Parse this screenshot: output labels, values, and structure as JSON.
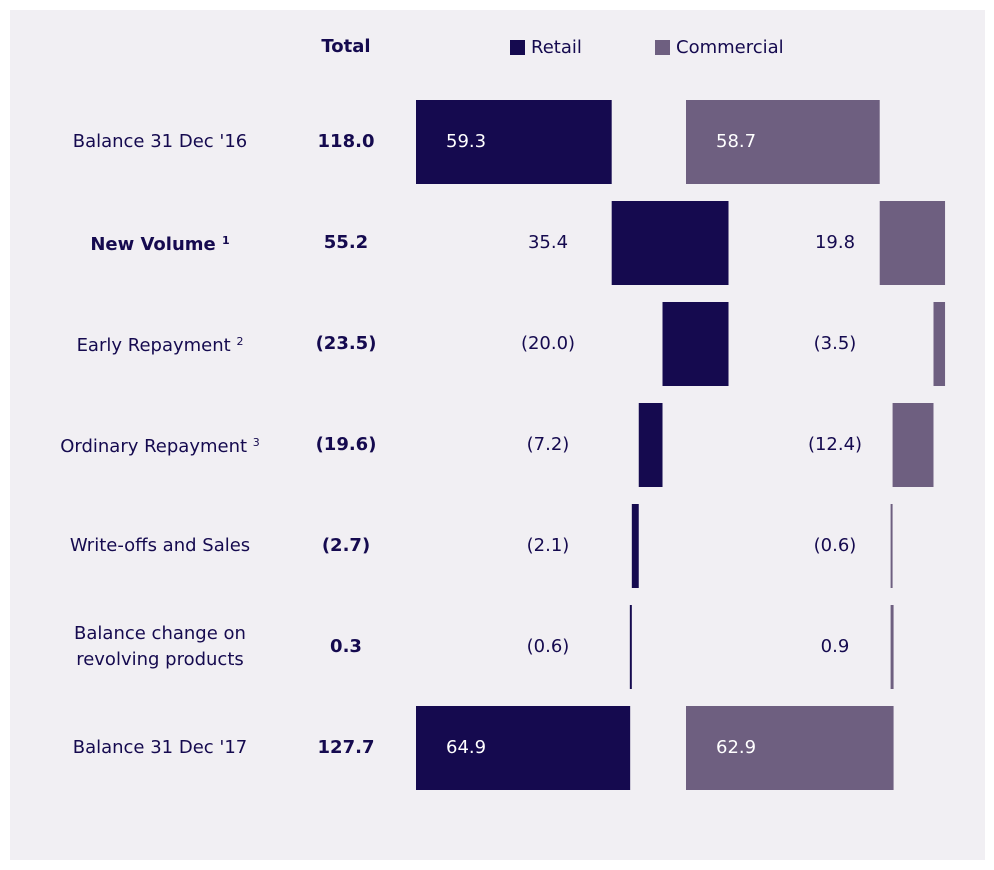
{
  "chart_data": {
    "type": "waterfall",
    "header": "Total",
    "categories": [
      "Balance 31 Dec '16",
      "New Volume",
      "Early  Repayment",
      "Ordinary Repayment",
      "Write-offs and Sales",
      "Balance change on revolving products",
      "Balance 31 Dec '17"
    ],
    "category_notes": [
      null,
      "1",
      "2",
      "3",
      null,
      null,
      null
    ],
    "totals": [
      118.0,
      55.2,
      -23.5,
      -19.6,
      -2.7,
      0.3,
      127.7
    ],
    "total_value_labels": [
      "118.0",
      "55.2",
      "(23.5)",
      "(19.6)",
      "(2.7)",
      "0.3",
      "127.7"
    ],
    "series": [
      {
        "name": "Retail",
        "color": "#150a4f",
        "values": [
          59.3,
          35.4,
          -20.0,
          -7.2,
          -2.1,
          -0.6,
          64.9
        ],
        "value_labels": [
          "59.3",
          "35.4",
          "(20.0)",
          "(7.2)",
          "(2.1)",
          "(0.6)",
          "64.9"
        ]
      },
      {
        "name": "Commercial",
        "color": "#6e5f80",
        "values": [
          58.7,
          19.8,
          -3.5,
          -12.4,
          -0.6,
          0.9,
          62.9
        ],
        "value_labels": [
          "58.7",
          "19.8",
          "(3.5)",
          "(12.4)",
          "(0.6)",
          "0.9",
          "62.9"
        ]
      }
    ]
  }
}
